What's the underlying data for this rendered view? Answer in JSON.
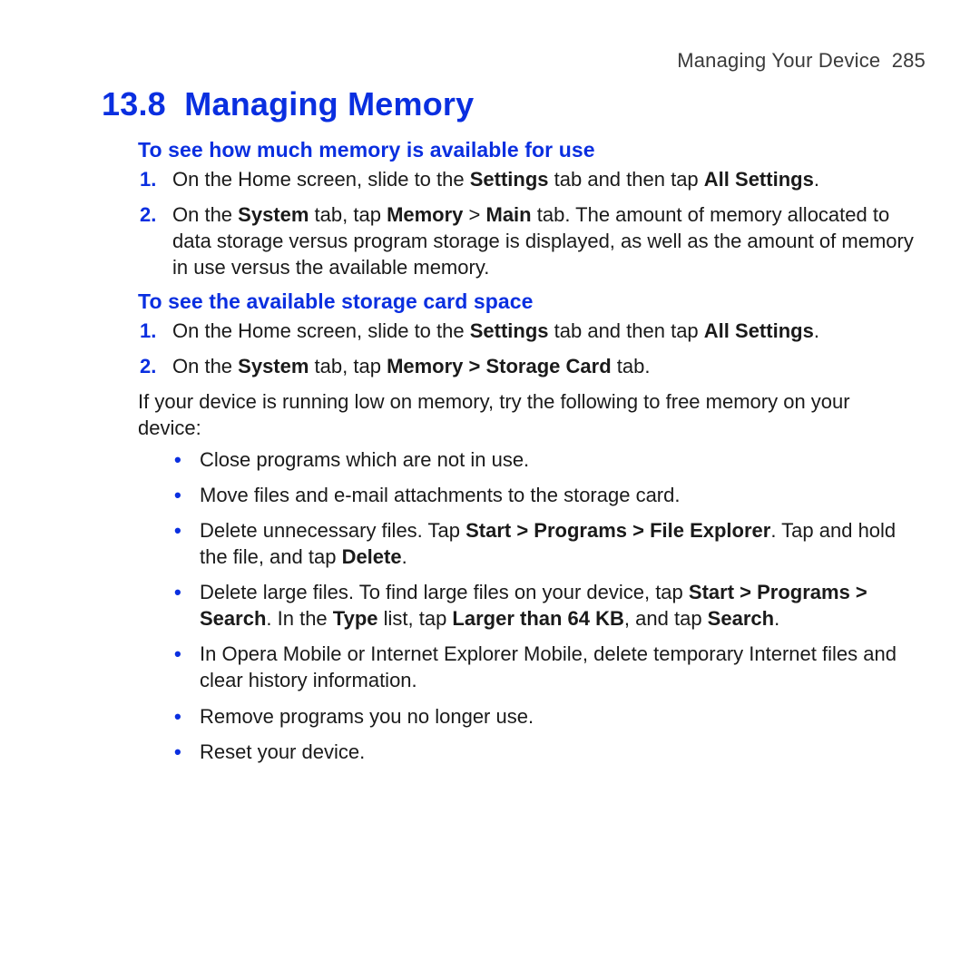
{
  "colors": {
    "accent_blue": "#0a2fe0",
    "body_text": "#1a1a1a",
    "running_head_text": "#3a3a3a",
    "background": "#ffffff"
  },
  "typography": {
    "body_fontsize_pt": 16,
    "heading_fontsize_pt": 27,
    "subheading_fontsize_pt": 17,
    "runninghead_fontsize_pt": 16,
    "font_family": "Myriad Pro / Segoe UI / sans-serif"
  },
  "header": {
    "running_title": "Managing Your Device",
    "page_number": "285"
  },
  "section": {
    "number": "13.8",
    "title": "Managing Memory"
  },
  "sub1": {
    "title": "To see how much memory is available for use",
    "steps": {
      "s1": {
        "pre": "On the Home screen, slide to the ",
        "b1": "Settings",
        "mid": " tab and then tap ",
        "b2": "All Settings",
        "post": "."
      },
      "s2": {
        "pre": "On the ",
        "b1": "System",
        "mid1": " tab, tap ",
        "b2": "Memory",
        "gt": " > ",
        "b3": "Main",
        "post": " tab. The amount of memory allocated to data storage versus program storage is displayed, as well as the amount of memory in use versus the available memory."
      }
    }
  },
  "sub2": {
    "title": "To see the available storage card space",
    "steps": {
      "s1": {
        "pre": "On the Home screen, slide to the ",
        "b1": "Settings",
        "mid": " tab and then tap ",
        "b2": "All Settings",
        "post": "."
      },
      "s2": {
        "pre": "On the ",
        "b1": "System",
        "mid1": " tab, tap ",
        "b2": "Memory > Storage Card",
        "post": " tab."
      }
    }
  },
  "freeMemory": {
    "intro": "If your device is running low on memory, try the following to free memory on your device:",
    "bullets": {
      "b1": {
        "text": "Close programs which are not in use."
      },
      "b2": {
        "text": "Move files and e-mail attachments to the storage card."
      },
      "b3": {
        "pre": "Delete unnecessary files. Tap ",
        "bold1": "Start > Programs > File Explorer",
        "mid": ". Tap and hold the file, and tap ",
        "bold2": "Delete",
        "post": "."
      },
      "b4": {
        "pre": "Delete large files. To find large files on your device, tap ",
        "bold1": "Start > Programs > Search",
        "mid1": ". In the ",
        "bold2": "Type",
        "mid2": " list, tap ",
        "bold3": "Larger than 64 KB",
        "mid3": ", and tap ",
        "bold4": "Search",
        "post": "."
      },
      "b5": {
        "text": "In Opera Mobile or Internet Explorer Mobile, delete temporary Internet files and clear history information."
      },
      "b6": {
        "text": "Remove programs you no longer use."
      },
      "b7": {
        "text": "Reset your device."
      }
    }
  }
}
